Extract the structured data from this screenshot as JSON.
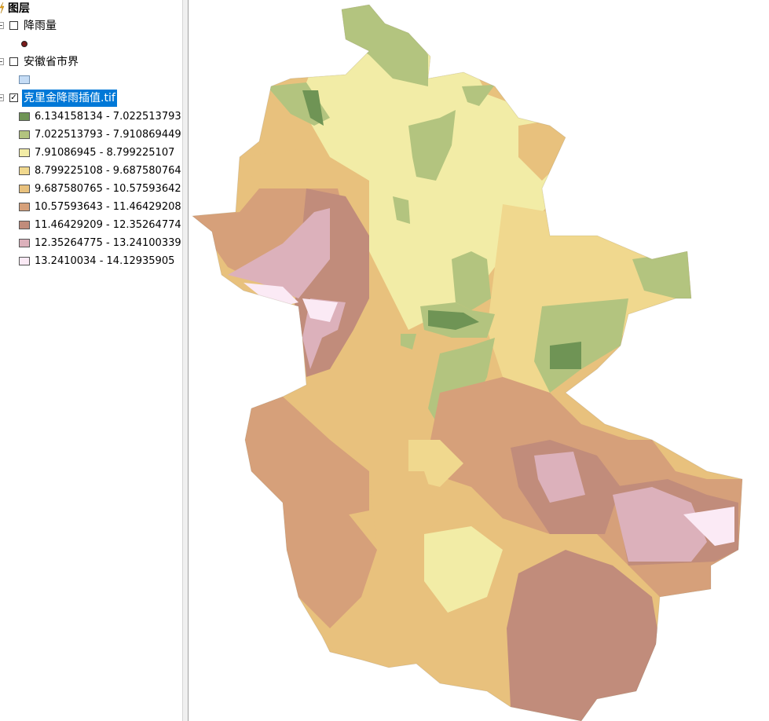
{
  "toc": {
    "title": "图层",
    "layers": [
      {
        "name": "降雨量",
        "checked": false,
        "symbol": "point-marker",
        "symbol_color": "#7a1a1a"
      },
      {
        "name": "安徽省市界",
        "checked": false,
        "symbol": "polygon",
        "symbol_color": "#c5dcf5"
      },
      {
        "name": "克里金降雨插值.tif",
        "checked": true,
        "selected": true
      }
    ],
    "classes": [
      {
        "label": "6.134158134 - 7.022513793",
        "color": "#6f9455"
      },
      {
        "label": "7.022513793 - 7.910869449",
        "color": "#b3c47f"
      },
      {
        "label": "7.91086945 - 8.799225107",
        "color": "#f2eca6"
      },
      {
        "label": "8.799225108 - 9.687580764",
        "color": "#f0d88e"
      },
      {
        "label": "9.687580765 - 10.57593642",
        "color": "#e8c17d"
      },
      {
        "label": "10.57593643 - 11.46429208",
        "color": "#d6a07a"
      },
      {
        "label": "11.46429209 - 12.35264774",
        "color": "#c18c7b"
      },
      {
        "label": "12.35264775 - 13.24100339",
        "color": "#dcb1bb"
      },
      {
        "label": "13.2410034 - 14.12935905",
        "color": "#fbeaf5"
      }
    ]
  }
}
